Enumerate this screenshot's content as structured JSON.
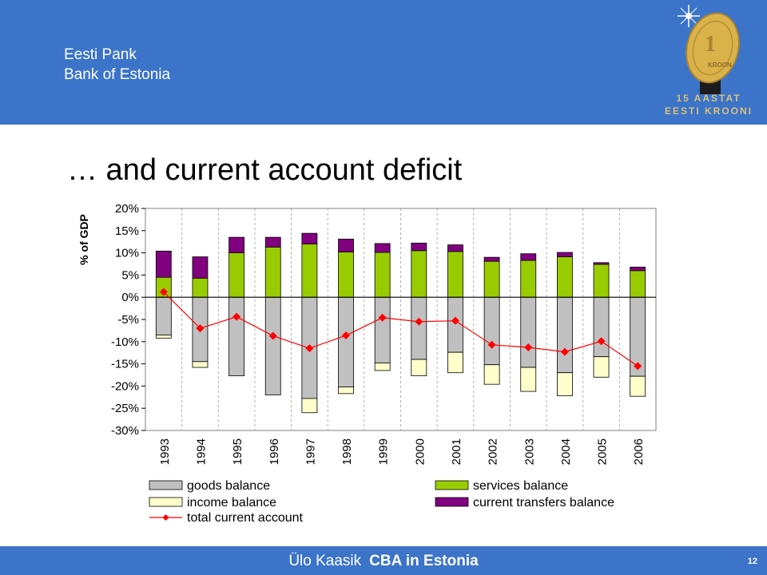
{
  "header": {
    "org_line1": "Eesti Pank",
    "org_line2": "Bank of Estonia",
    "logo_text_line1": "15 AASTAT",
    "logo_text_line2": "EESTI KROONI",
    "logo_coin_text": "KROON",
    "colors": {
      "band": "#3b74c9",
      "coin": "#d9b24a"
    }
  },
  "slide": {
    "title": "… and current account deficit"
  },
  "footer": {
    "author": "Ülo Kaasik",
    "course": "CBA in Estonia",
    "page": "12"
  },
  "chart_data": {
    "type": "bar",
    "stacked": true,
    "ylabel": "% of GDP",
    "ylim": [
      -30,
      20
    ],
    "yticks": [
      20,
      15,
      10,
      5,
      0,
      -5,
      -10,
      -15,
      -20,
      -25,
      -30
    ],
    "ytick_labels": [
      "20%",
      "15%",
      "10%",
      "5%",
      "0%",
      "-5%",
      "-10%",
      "-15%",
      "-20%",
      "-25%",
      "-30%"
    ],
    "grid": "vertical dashed",
    "legend_position": "bottom",
    "categories": [
      "1993",
      "1994",
      "1995",
      "1996",
      "1997",
      "1998",
      "1999",
      "2000",
      "2001",
      "2002",
      "2003",
      "2004",
      "2005",
      "2006"
    ],
    "series": [
      {
        "name": "goods balance",
        "kind": "bar",
        "color": "#c0c0c0",
        "values": [
          -8.5,
          -14.5,
          -17.7,
          -22.0,
          -22.8,
          -20.2,
          -14.8,
          -14.0,
          -12.4,
          -15.2,
          -15.8,
          -17.0,
          -13.4,
          -17.8
        ]
      },
      {
        "name": "services balance",
        "kind": "bar",
        "color": "#99cc00",
        "values": [
          4.5,
          4.3,
          10.0,
          11.3,
          12.0,
          10.2,
          10.1,
          10.5,
          10.3,
          8.1,
          8.3,
          9.1,
          7.4,
          6.0
        ]
      },
      {
        "name": "income balance",
        "kind": "bar",
        "color": "#ffffcc",
        "values": [
          -0.7,
          -1.3,
          0,
          0,
          -3.2,
          -1.5,
          -1.7,
          -3.7,
          -4.6,
          -4.4,
          -5.4,
          -5.2,
          -4.6,
          -4.5
        ]
      },
      {
        "name": "current transfers balance",
        "kind": "bar",
        "color": "#800080",
        "values": [
          5.9,
          4.8,
          3.5,
          2.2,
          2.4,
          2.9,
          2.0,
          1.7,
          1.5,
          0.9,
          1.5,
          1.0,
          0.4,
          0.8
        ]
      },
      {
        "name": "total current account",
        "kind": "line",
        "color": "#ff0000",
        "values": [
          1.2,
          -7.0,
          -4.4,
          -8.7,
          -11.5,
          -8.6,
          -4.6,
          -5.5,
          -5.3,
          -10.7,
          -11.3,
          -12.3,
          -9.9,
          -15.5
        ]
      }
    ]
  }
}
